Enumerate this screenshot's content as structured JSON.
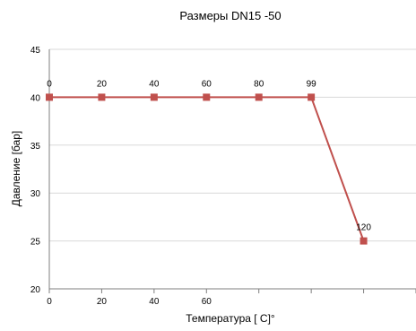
{
  "chart_data": {
    "type": "line",
    "title": "Размеры DN15 -50",
    "xlabel": "Температура [ C]°",
    "ylabel": "Давление [бар]",
    "ylim": [
      20,
      45
    ],
    "yticks": [
      "20",
      "25",
      "30",
      "35",
      "40",
      "45"
    ],
    "xtick_labels": [
      "0",
      "20",
      "40",
      "60",
      "",
      "",
      ""
    ],
    "grid": true,
    "colors": {
      "series": "#c0504d",
      "grid": "#d9d9d9",
      "axis": "#7f7f7f"
    },
    "series": [
      {
        "x": [
          0,
          20,
          40,
          60,
          80,
          99,
          120
        ],
        "values": [
          40,
          40,
          40,
          40,
          40,
          40,
          25
        ],
        "data_labels": [
          "0",
          "20",
          "40",
          "60",
          "80",
          "99",
          "120"
        ]
      }
    ]
  }
}
